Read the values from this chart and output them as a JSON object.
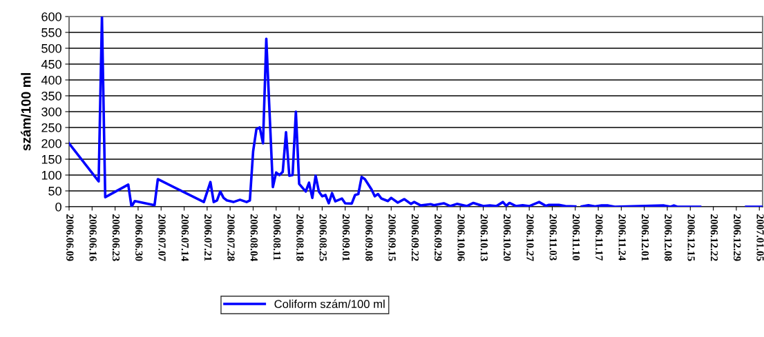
{
  "chart_data": {
    "type": "line",
    "ylabel": "szám/100 ml",
    "x": [
      "2006-06-09",
      "2006-06-18",
      "2006-06-19",
      "2006-06-20",
      "2006-06-27",
      "2006-06-28",
      "2006-06-29",
      "2006-07-05",
      "2006-07-06",
      "2006-07-20",
      "2006-07-22",
      "2006-07-23",
      "2006-07-24",
      "2006-07-25",
      "2006-07-26",
      "2006-07-27",
      "2006-07-29",
      "2006-07-31",
      "2006-08-02",
      "2006-08-03",
      "2006-08-04",
      "2006-08-05",
      "2006-08-06",
      "2006-08-07",
      "2006-08-08",
      "2006-08-10",
      "2006-08-11",
      "2006-08-12",
      "2006-08-13",
      "2006-08-14",
      "2006-08-15",
      "2006-08-16",
      "2006-08-17",
      "2006-08-18",
      "2006-08-20",
      "2006-08-21",
      "2006-08-22",
      "2006-08-23",
      "2006-08-24",
      "2006-08-25",
      "2006-08-26",
      "2006-08-27",
      "2006-08-28",
      "2006-08-29",
      "2006-08-31",
      "2006-09-01",
      "2006-09-03",
      "2006-09-04",
      "2006-09-05",
      "2006-09-06",
      "2006-09-07",
      "2006-09-09",
      "2006-09-10",
      "2006-09-11",
      "2006-09-12",
      "2006-09-14",
      "2006-09-15",
      "2006-09-17",
      "2006-09-19",
      "2006-09-21",
      "2006-09-22",
      "2006-09-24",
      "2006-09-27",
      "2006-09-28",
      "2006-10-01",
      "2006-10-03",
      "2006-10-05",
      "2006-10-08",
      "2006-10-10",
      "2006-10-13",
      "2006-10-15",
      "2006-10-17",
      "2006-10-19",
      "2006-10-20",
      "2006-10-21",
      "2006-10-23",
      "2006-10-25",
      "2006-10-27",
      "2006-10-30",
      "2006-11-01",
      "2006-11-02",
      "2006-11-05",
      "2006-11-07",
      "2006-11-10",
      "2006-11-11",
      "2006-11-12",
      "2006-11-14",
      "2006-11-16",
      "2006-11-18",
      "2006-11-20",
      "2006-11-22",
      "2006-12-07",
      "2006-12-09",
      "2006-12-10",
      "2006-12-11",
      "2006-12-18",
      "2006-12-19",
      "2007-01-01",
      "2007-01-06"
    ],
    "series": [
      {
        "name": "Coliform szám/100 ml",
        "color": "#0000ff",
        "values": [
          200,
          80,
          600,
          30,
          70,
          0,
          18,
          5,
          87,
          15,
          78,
          15,
          20,
          48,
          28,
          20,
          15,
          22,
          15,
          20,
          175,
          245,
          250,
          200,
          530,
          62,
          108,
          100,
          110,
          235,
          98,
          100,
          300,
          72,
          48,
          76,
          28,
          98,
          48,
          33,
          37,
          11,
          43,
          17,
          26,
          11,
          10,
          37,
          40,
          94,
          87,
          55,
          33,
          40,
          26,
          18,
          28,
          13,
          24,
          9,
          15,
          4,
          8,
          5,
          11,
          2,
          9,
          2,
          12,
          2,
          4,
          2,
          15,
          3,
          12,
          2,
          5,
          2,
          15,
          3,
          6,
          6,
          2,
          1,
          null,
          1,
          5,
          1,
          4,
          4,
          0,
          4,
          0,
          4,
          0,
          0,
          null,
          0,
          0
        ]
      }
    ],
    "xlim": [
      "2006-06-09",
      "2007-01-06"
    ],
    "xticks": [
      {
        "value": "2006-06-09",
        "label": "2006.06.09"
      },
      {
        "value": "2006-06-16",
        "label": "2006.06.16"
      },
      {
        "value": "2006-06-23",
        "label": "2006.06.23"
      },
      {
        "value": "2006-06-30",
        "label": "2006.06.30"
      },
      {
        "value": "2006-07-07",
        "label": "2006.07.07"
      },
      {
        "value": "2006-07-14",
        "label": "2006.07.14"
      },
      {
        "value": "2006-07-21",
        "label": "2006.07.21"
      },
      {
        "value": "2006-07-28",
        "label": "2006.07.28"
      },
      {
        "value": "2006-08-04",
        "label": "2006.08.04"
      },
      {
        "value": "2006-08-11",
        "label": "2006.08.11"
      },
      {
        "value": "2006-08-18",
        "label": "2006.08.18"
      },
      {
        "value": "2006-08-25",
        "label": "2006.08.25"
      },
      {
        "value": "2006-09-01",
        "label": "2006.09.01"
      },
      {
        "value": "2006-09-08",
        "label": "2006.09.08"
      },
      {
        "value": "2006-09-15",
        "label": "2006.09.15"
      },
      {
        "value": "2006-09-22",
        "label": "2006.09.22"
      },
      {
        "value": "2006-09-29",
        "label": "2006.09.29"
      },
      {
        "value": "2006-10-06",
        "label": "2006.10.06"
      },
      {
        "value": "2006-10-13",
        "label": "2006.10.13"
      },
      {
        "value": "2006-10-20",
        "label": "2006.10.20"
      },
      {
        "value": "2006-10-27",
        "label": "2006.10.27"
      },
      {
        "value": "2006-11-03",
        "label": "2006.11.03"
      },
      {
        "value": "2006-11-10",
        "label": "2006.11.10"
      },
      {
        "value": "2006-11-17",
        "label": "2006.11.17"
      },
      {
        "value": "2006-11-24",
        "label": "2006.11.24"
      },
      {
        "value": "2006-12-01",
        "label": "2006.12.01"
      },
      {
        "value": "2006-12-08",
        "label": "2006.12.08"
      },
      {
        "value": "2006-12-15",
        "label": "2006.12.15"
      },
      {
        "value": "2006-12-22",
        "label": "2006.12.22"
      },
      {
        "value": "2006-12-29",
        "label": "2006.12.29"
      },
      {
        "value": "2007-01-05",
        "label": "2007.01.05"
      }
    ],
    "ylim": [
      0,
      600
    ],
    "yticks": [
      0,
      50,
      100,
      150,
      200,
      250,
      300,
      350,
      400,
      450,
      500,
      550,
      600
    ],
    "grid": "y",
    "legend": "bottom",
    "marker": "none",
    "line_style": "solid"
  }
}
